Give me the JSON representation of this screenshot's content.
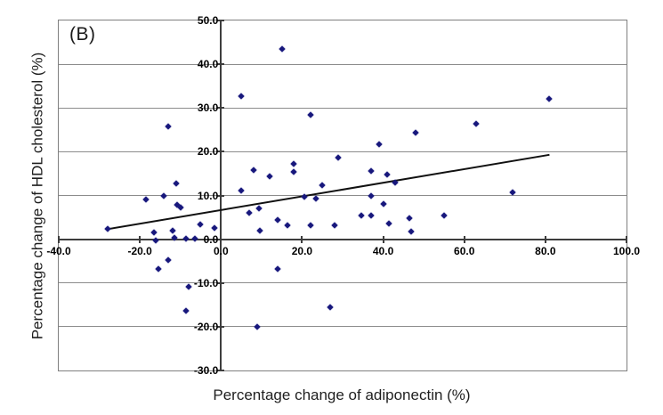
{
  "figure_label": "(B)",
  "chart_data": {
    "type": "scatter",
    "title": "",
    "xlabel": "Percentage change of adiponectin (%)",
    "ylabel": "Percentage change of HDL cholesterol (%)",
    "xlim": [
      -40,
      100
    ],
    "ylim": [
      -30,
      50
    ],
    "x_tick_values": [
      -40,
      -20,
      0,
      20,
      40,
      60,
      80,
      100
    ],
    "x_tick_labels": [
      "-40.0",
      "-20.0",
      "0.0",
      "20.0",
      "40.0",
      "60.0",
      "80.0",
      "100.0"
    ],
    "y_tick_values": [
      50,
      40,
      30,
      20,
      10,
      0,
      -10,
      -20,
      -30
    ],
    "y_tick_labels": [
      "50.0",
      "40.0",
      "30.0",
      "20.0",
      "10.0",
      "0.0",
      "-10.0",
      "-20.0",
      "-30.0"
    ],
    "grid": "horizontal",
    "legend": "none",
    "marker": "diamond",
    "points": [
      [
        15,
        43.4
      ],
      [
        5,
        32.6
      ],
      [
        22,
        28.5
      ],
      [
        -13,
        25.8
      ],
      [
        81,
        32.0
      ],
      [
        63,
        26.4
      ],
      [
        48,
        24.4
      ],
      [
        39,
        21.7
      ],
      [
        29,
        18.7
      ],
      [
        18,
        17.3
      ],
      [
        18,
        15.3
      ],
      [
        8,
        15.9
      ],
      [
        12,
        14.3
      ],
      [
        37,
        15.5
      ],
      [
        41,
        14.7
      ],
      [
        25,
        12.3
      ],
      [
        43,
        13.0
      ],
      [
        5,
        11.2
      ],
      [
        72,
        10.8
      ],
      [
        -18.5,
        9.0
      ],
      [
        -14,
        9.8
      ],
      [
        -11,
        12.8
      ],
      [
        -10.8,
        7.8
      ],
      [
        -9.9,
        7.2
      ],
      [
        20.5,
        9.7
      ],
      [
        23.5,
        9.2
      ],
      [
        37,
        9.8
      ],
      [
        40,
        8.1
      ],
      [
        7,
        6.1
      ],
      [
        9.4,
        7.1
      ],
      [
        14,
        4.5
      ],
      [
        16.5,
        3.2
      ],
      [
        9.5,
        1.9
      ],
      [
        22,
        3.2
      ],
      [
        28,
        3.1
      ],
      [
        34.5,
        5.5
      ],
      [
        37,
        5.5
      ],
      [
        41.5,
        3.5
      ],
      [
        47,
        1.8
      ],
      [
        46.5,
        4.9
      ],
      [
        55,
        5.4
      ],
      [
        -28,
        2.3
      ],
      [
        -16.5,
        1.5
      ],
      [
        -16,
        -0.3
      ],
      [
        -12,
        1.9
      ],
      [
        -11.5,
        0.3
      ],
      [
        -8.6,
        0.1
      ],
      [
        -6.4,
        0.1
      ],
      [
        -5.2,
        3.3
      ],
      [
        -1.5,
        2.6
      ],
      [
        -13,
        -4.7
      ],
      [
        -15.5,
        -6.8
      ],
      [
        -8,
        -10.8
      ],
      [
        -8.6,
        -16.3
      ],
      [
        14,
        -6.8
      ],
      [
        9,
        -20.0
      ],
      [
        27,
        -15.6
      ]
    ],
    "trendline": {
      "x1": -28,
      "y1": 2.3,
      "x2": 81,
      "y2": 19.3
    },
    "colors": {
      "marker": "#17177c",
      "trendline": "#111111",
      "gridline": "#8c8c8c",
      "axis": "#3d3d3d",
      "border": "#7f7f7f",
      "text": "#000000"
    }
  }
}
